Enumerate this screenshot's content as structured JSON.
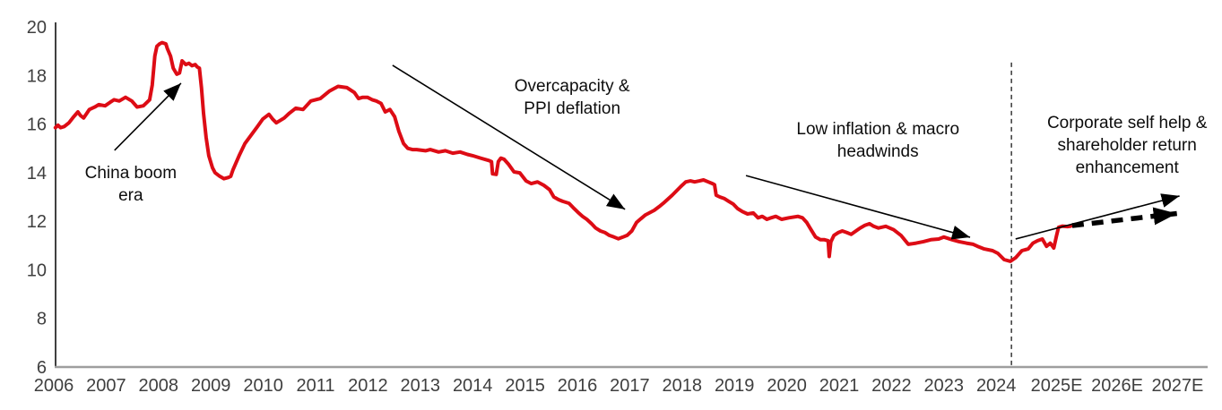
{
  "chart_data": {
    "type": "line",
    "title": "",
    "xlabel": "",
    "ylabel": "",
    "y_axis": {
      "ticks": [
        6,
        8,
        10,
        12,
        14,
        16,
        18,
        20
      ],
      "range": [
        6,
        20
      ],
      "grid": false
    },
    "x_axis": {
      "labels": [
        "2006",
        "2007",
        "2008",
        "2009",
        "2010",
        "2011",
        "2012",
        "2013",
        "2014",
        "2015",
        "2016",
        "2017",
        "2018",
        "2019",
        "2020",
        "2021",
        "2022",
        "2023",
        "2024",
        "2025E",
        "2026E",
        "2027E"
      ],
      "range": [
        2006,
        2027.6
      ]
    },
    "colors": {
      "series_red": "#dd0c15",
      "axis_line": "#9e9e9e",
      "y_axis_line": "#000000",
      "tick_label": "#3f3f3f",
      "annotation_text": "#0d0d0d",
      "arrow": "#000000"
    },
    "series": [
      {
        "name": "historical-and-estimated-margin",
        "color": "#dd0c15",
        "points": [
          [
            2006.03,
            15.85
          ],
          [
            2006.08,
            15.95
          ],
          [
            2006.13,
            15.85
          ],
          [
            2006.2,
            15.9
          ],
          [
            2006.29,
            16.05
          ],
          [
            2006.38,
            16.3
          ],
          [
            2006.46,
            16.5
          ],
          [
            2006.51,
            16.35
          ],
          [
            2006.57,
            16.25
          ],
          [
            2006.68,
            16.6
          ],
          [
            2006.78,
            16.7
          ],
          [
            2006.86,
            16.8
          ],
          [
            2006.98,
            16.75
          ],
          [
            2007.08,
            16.9
          ],
          [
            2007.15,
            17.0
          ],
          [
            2007.25,
            16.95
          ],
          [
            2007.37,
            17.1
          ],
          [
            2007.49,
            16.95
          ],
          [
            2007.59,
            16.7
          ],
          [
            2007.71,
            16.75
          ],
          [
            2007.83,
            17.0
          ],
          [
            2007.88,
            17.6
          ],
          [
            2007.93,
            18.8
          ],
          [
            2007.97,
            19.2
          ],
          [
            2008.02,
            19.3
          ],
          [
            2008.07,
            19.35
          ],
          [
            2008.14,
            19.3
          ],
          [
            2008.17,
            19.1
          ],
          [
            2008.23,
            18.8
          ],
          [
            2008.28,
            18.3
          ],
          [
            2008.35,
            18.05
          ],
          [
            2008.4,
            18.1
          ],
          [
            2008.45,
            18.6
          ],
          [
            2008.52,
            18.45
          ],
          [
            2008.58,
            18.5
          ],
          [
            2008.64,
            18.4
          ],
          [
            2008.7,
            18.45
          ],
          [
            2008.74,
            18.35
          ],
          [
            2008.78,
            18.3
          ],
          [
            2008.82,
            17.5
          ],
          [
            2008.86,
            16.45
          ],
          [
            2008.91,
            15.45
          ],
          [
            2008.96,
            14.7
          ],
          [
            2009.03,
            14.2
          ],
          [
            2009.08,
            14.0
          ],
          [
            2009.17,
            13.85
          ],
          [
            2009.25,
            13.75
          ],
          [
            2009.33,
            13.8
          ],
          [
            2009.38,
            13.85
          ],
          [
            2009.42,
            14.1
          ],
          [
            2009.54,
            14.7
          ],
          [
            2009.65,
            15.2
          ],
          [
            2009.77,
            15.55
          ],
          [
            2009.89,
            15.9
          ],
          [
            2009.99,
            16.2
          ],
          [
            2010.11,
            16.4
          ],
          [
            2010.18,
            16.2
          ],
          [
            2010.25,
            16.05
          ],
          [
            2010.4,
            16.25
          ],
          [
            2010.5,
            16.45
          ],
          [
            2010.62,
            16.65
          ],
          [
            2010.76,
            16.6
          ],
          [
            2010.91,
            16.95
          ],
          [
            2011.09,
            17.05
          ],
          [
            2011.26,
            17.35
          ],
          [
            2011.43,
            17.55
          ],
          [
            2011.6,
            17.5
          ],
          [
            2011.74,
            17.3
          ],
          [
            2011.82,
            17.05
          ],
          [
            2011.9,
            17.1
          ],
          [
            2011.99,
            17.1
          ],
          [
            2012.08,
            17.0
          ],
          [
            2012.16,
            16.95
          ],
          [
            2012.25,
            16.85
          ],
          [
            2012.33,
            16.5
          ],
          [
            2012.42,
            16.6
          ],
          [
            2012.51,
            16.3
          ],
          [
            2012.59,
            15.7
          ],
          [
            2012.68,
            15.2
          ],
          [
            2012.76,
            15.0
          ],
          [
            2012.85,
            14.95
          ],
          [
            2012.93,
            14.95
          ],
          [
            2013.1,
            14.9
          ],
          [
            2013.19,
            14.95
          ],
          [
            2013.35,
            14.85
          ],
          [
            2013.48,
            14.9
          ],
          [
            2013.62,
            14.8
          ],
          [
            2013.76,
            14.85
          ],
          [
            2013.9,
            14.75
          ],
          [
            2014.0,
            14.7
          ],
          [
            2014.15,
            14.6
          ],
          [
            2014.31,
            14.5
          ],
          [
            2014.36,
            14.45
          ],
          [
            2014.38,
            13.95
          ],
          [
            2014.45,
            13.93
          ],
          [
            2014.49,
            14.45
          ],
          [
            2014.54,
            14.6
          ],
          [
            2014.6,
            14.55
          ],
          [
            2014.68,
            14.36
          ],
          [
            2014.79,
            14.03
          ],
          [
            2014.9,
            13.99
          ],
          [
            2015.02,
            13.66
          ],
          [
            2015.12,
            13.55
          ],
          [
            2015.24,
            13.62
          ],
          [
            2015.36,
            13.48
          ],
          [
            2015.47,
            13.3
          ],
          [
            2015.55,
            13.0
          ],
          [
            2015.64,
            12.89
          ],
          [
            2015.72,
            12.82
          ],
          [
            2015.84,
            12.74
          ],
          [
            2015.92,
            12.56
          ],
          [
            2016.01,
            12.37
          ],
          [
            2016.1,
            12.2
          ],
          [
            2016.18,
            12.08
          ],
          [
            2016.27,
            11.9
          ],
          [
            2016.35,
            11.72
          ],
          [
            2016.44,
            11.6
          ],
          [
            2016.53,
            11.53
          ],
          [
            2016.61,
            11.42
          ],
          [
            2016.7,
            11.35
          ],
          [
            2016.78,
            11.28
          ],
          [
            2016.87,
            11.35
          ],
          [
            2016.95,
            11.42
          ],
          [
            2017.04,
            11.6
          ],
          [
            2017.13,
            11.95
          ],
          [
            2017.21,
            12.1
          ],
          [
            2017.3,
            12.26
          ],
          [
            2017.47,
            12.45
          ],
          [
            2017.56,
            12.6
          ],
          [
            2017.64,
            12.74
          ],
          [
            2017.81,
            13.07
          ],
          [
            2017.98,
            13.44
          ],
          [
            2018.07,
            13.62
          ],
          [
            2018.16,
            13.66
          ],
          [
            2018.24,
            13.62
          ],
          [
            2018.33,
            13.66
          ],
          [
            2018.41,
            13.7
          ],
          [
            2018.5,
            13.62
          ],
          [
            2018.58,
            13.55
          ],
          [
            2018.62,
            13.5
          ],
          [
            2018.65,
            13.07
          ],
          [
            2018.72,
            13.0
          ],
          [
            2018.81,
            12.93
          ],
          [
            2018.89,
            12.82
          ],
          [
            2018.98,
            12.7
          ],
          [
            2019.06,
            12.52
          ],
          [
            2019.15,
            12.4
          ],
          [
            2019.25,
            12.3
          ],
          [
            2019.36,
            12.34
          ],
          [
            2019.45,
            12.14
          ],
          [
            2019.53,
            12.2
          ],
          [
            2019.62,
            12.08
          ],
          [
            2019.7,
            12.14
          ],
          [
            2019.79,
            12.2
          ],
          [
            2019.9,
            12.08
          ],
          [
            2020.04,
            12.14
          ],
          [
            2020.21,
            12.2
          ],
          [
            2020.3,
            12.14
          ],
          [
            2020.38,
            11.95
          ],
          [
            2020.47,
            11.63
          ],
          [
            2020.55,
            11.35
          ],
          [
            2020.64,
            11.24
          ],
          [
            2020.72,
            11.24
          ],
          [
            2020.79,
            11.2
          ],
          [
            2020.81,
            10.55
          ],
          [
            2020.84,
            11.15
          ],
          [
            2020.9,
            11.42
          ],
          [
            2020.98,
            11.53
          ],
          [
            2021.06,
            11.6
          ],
          [
            2021.15,
            11.53
          ],
          [
            2021.23,
            11.46
          ],
          [
            2021.32,
            11.6
          ],
          [
            2021.4,
            11.72
          ],
          [
            2021.49,
            11.83
          ],
          [
            2021.58,
            11.9
          ],
          [
            2021.66,
            11.79
          ],
          [
            2021.75,
            11.72
          ],
          [
            2021.89,
            11.79
          ],
          [
            2022.04,
            11.65
          ],
          [
            2022.18,
            11.42
          ],
          [
            2022.32,
            11.05
          ],
          [
            2022.47,
            11.1
          ],
          [
            2022.61,
            11.16
          ],
          [
            2022.75,
            11.24
          ],
          [
            2022.9,
            11.27
          ],
          [
            2023.0,
            11.35
          ],
          [
            2023.16,
            11.24
          ],
          [
            2023.29,
            11.16
          ],
          [
            2023.43,
            11.1
          ],
          [
            2023.56,
            11.05
          ],
          [
            2023.64,
            10.97
          ],
          [
            2023.77,
            10.86
          ],
          [
            2023.93,
            10.79
          ],
          [
            2024.03,
            10.68
          ],
          [
            2024.15,
            10.42
          ],
          [
            2024.27,
            10.35
          ],
          [
            2024.37,
            10.5
          ],
          [
            2024.49,
            10.79
          ],
          [
            2024.61,
            10.86
          ],
          [
            2024.7,
            11.1
          ],
          [
            2024.79,
            11.2
          ],
          [
            2024.88,
            11.27
          ],
          [
            2024.96,
            10.97
          ],
          [
            2025.03,
            11.1
          ],
          [
            2025.1,
            10.9
          ],
          [
            2025.15,
            11.4
          ],
          [
            2025.19,
            11.75
          ],
          [
            2025.26,
            11.8
          ],
          [
            2025.36,
            11.78
          ],
          [
            2025.42,
            11.8
          ]
        ]
      }
    ],
    "divider": {
      "x": 2024.29,
      "top_value": 18.53,
      "bottom_value": 6.0,
      "style": "dashed"
    },
    "annotations": [
      {
        "id": "china-boom-era",
        "lines": [
          "China boom",
          "era"
        ],
        "x": 2007.47,
        "top_value": 14.45,
        "arrow": {
          "x1": 2007.16,
          "v1": 14.92,
          "x2": 2008.43,
          "v2": 17.68,
          "style": "solid"
        }
      },
      {
        "id": "overcapacity-ppi-deflation",
        "lines": [
          "Overcapacity &",
          "PPI deflation"
        ],
        "x": 2015.9,
        "top_value": 18.01,
        "arrow": {
          "x1": 2012.47,
          "v1": 18.42,
          "x2": 2016.91,
          "v2": 12.49,
          "style": "solid"
        }
      },
      {
        "id": "low-inflation-macro-headwinds",
        "lines": [
          "Low inflation & macro",
          "headwinds"
        ],
        "x": 2021.74,
        "top_value": 16.25,
        "arrow": {
          "x1": 2019.22,
          "v1": 13.88,
          "x2": 2023.5,
          "v2": 11.34,
          "style": "solid"
        }
      },
      {
        "id": "corporate-self-help",
        "lines": [
          "Corporate self help &",
          "shareholder return",
          "enhancement"
        ],
        "x": 2026.5,
        "top_value": 16.5,
        "arrow": {
          "x1": 2024.37,
          "v1": 11.27,
          "x2": 2027.5,
          "v2": 13.04,
          "style": "solid"
        }
      }
    ],
    "projection_arrow": {
      "x1": 2025.45,
      "v1": 11.82,
      "x2": 2027.45,
      "v2": 12.32,
      "style": "thick-dashed"
    }
  }
}
